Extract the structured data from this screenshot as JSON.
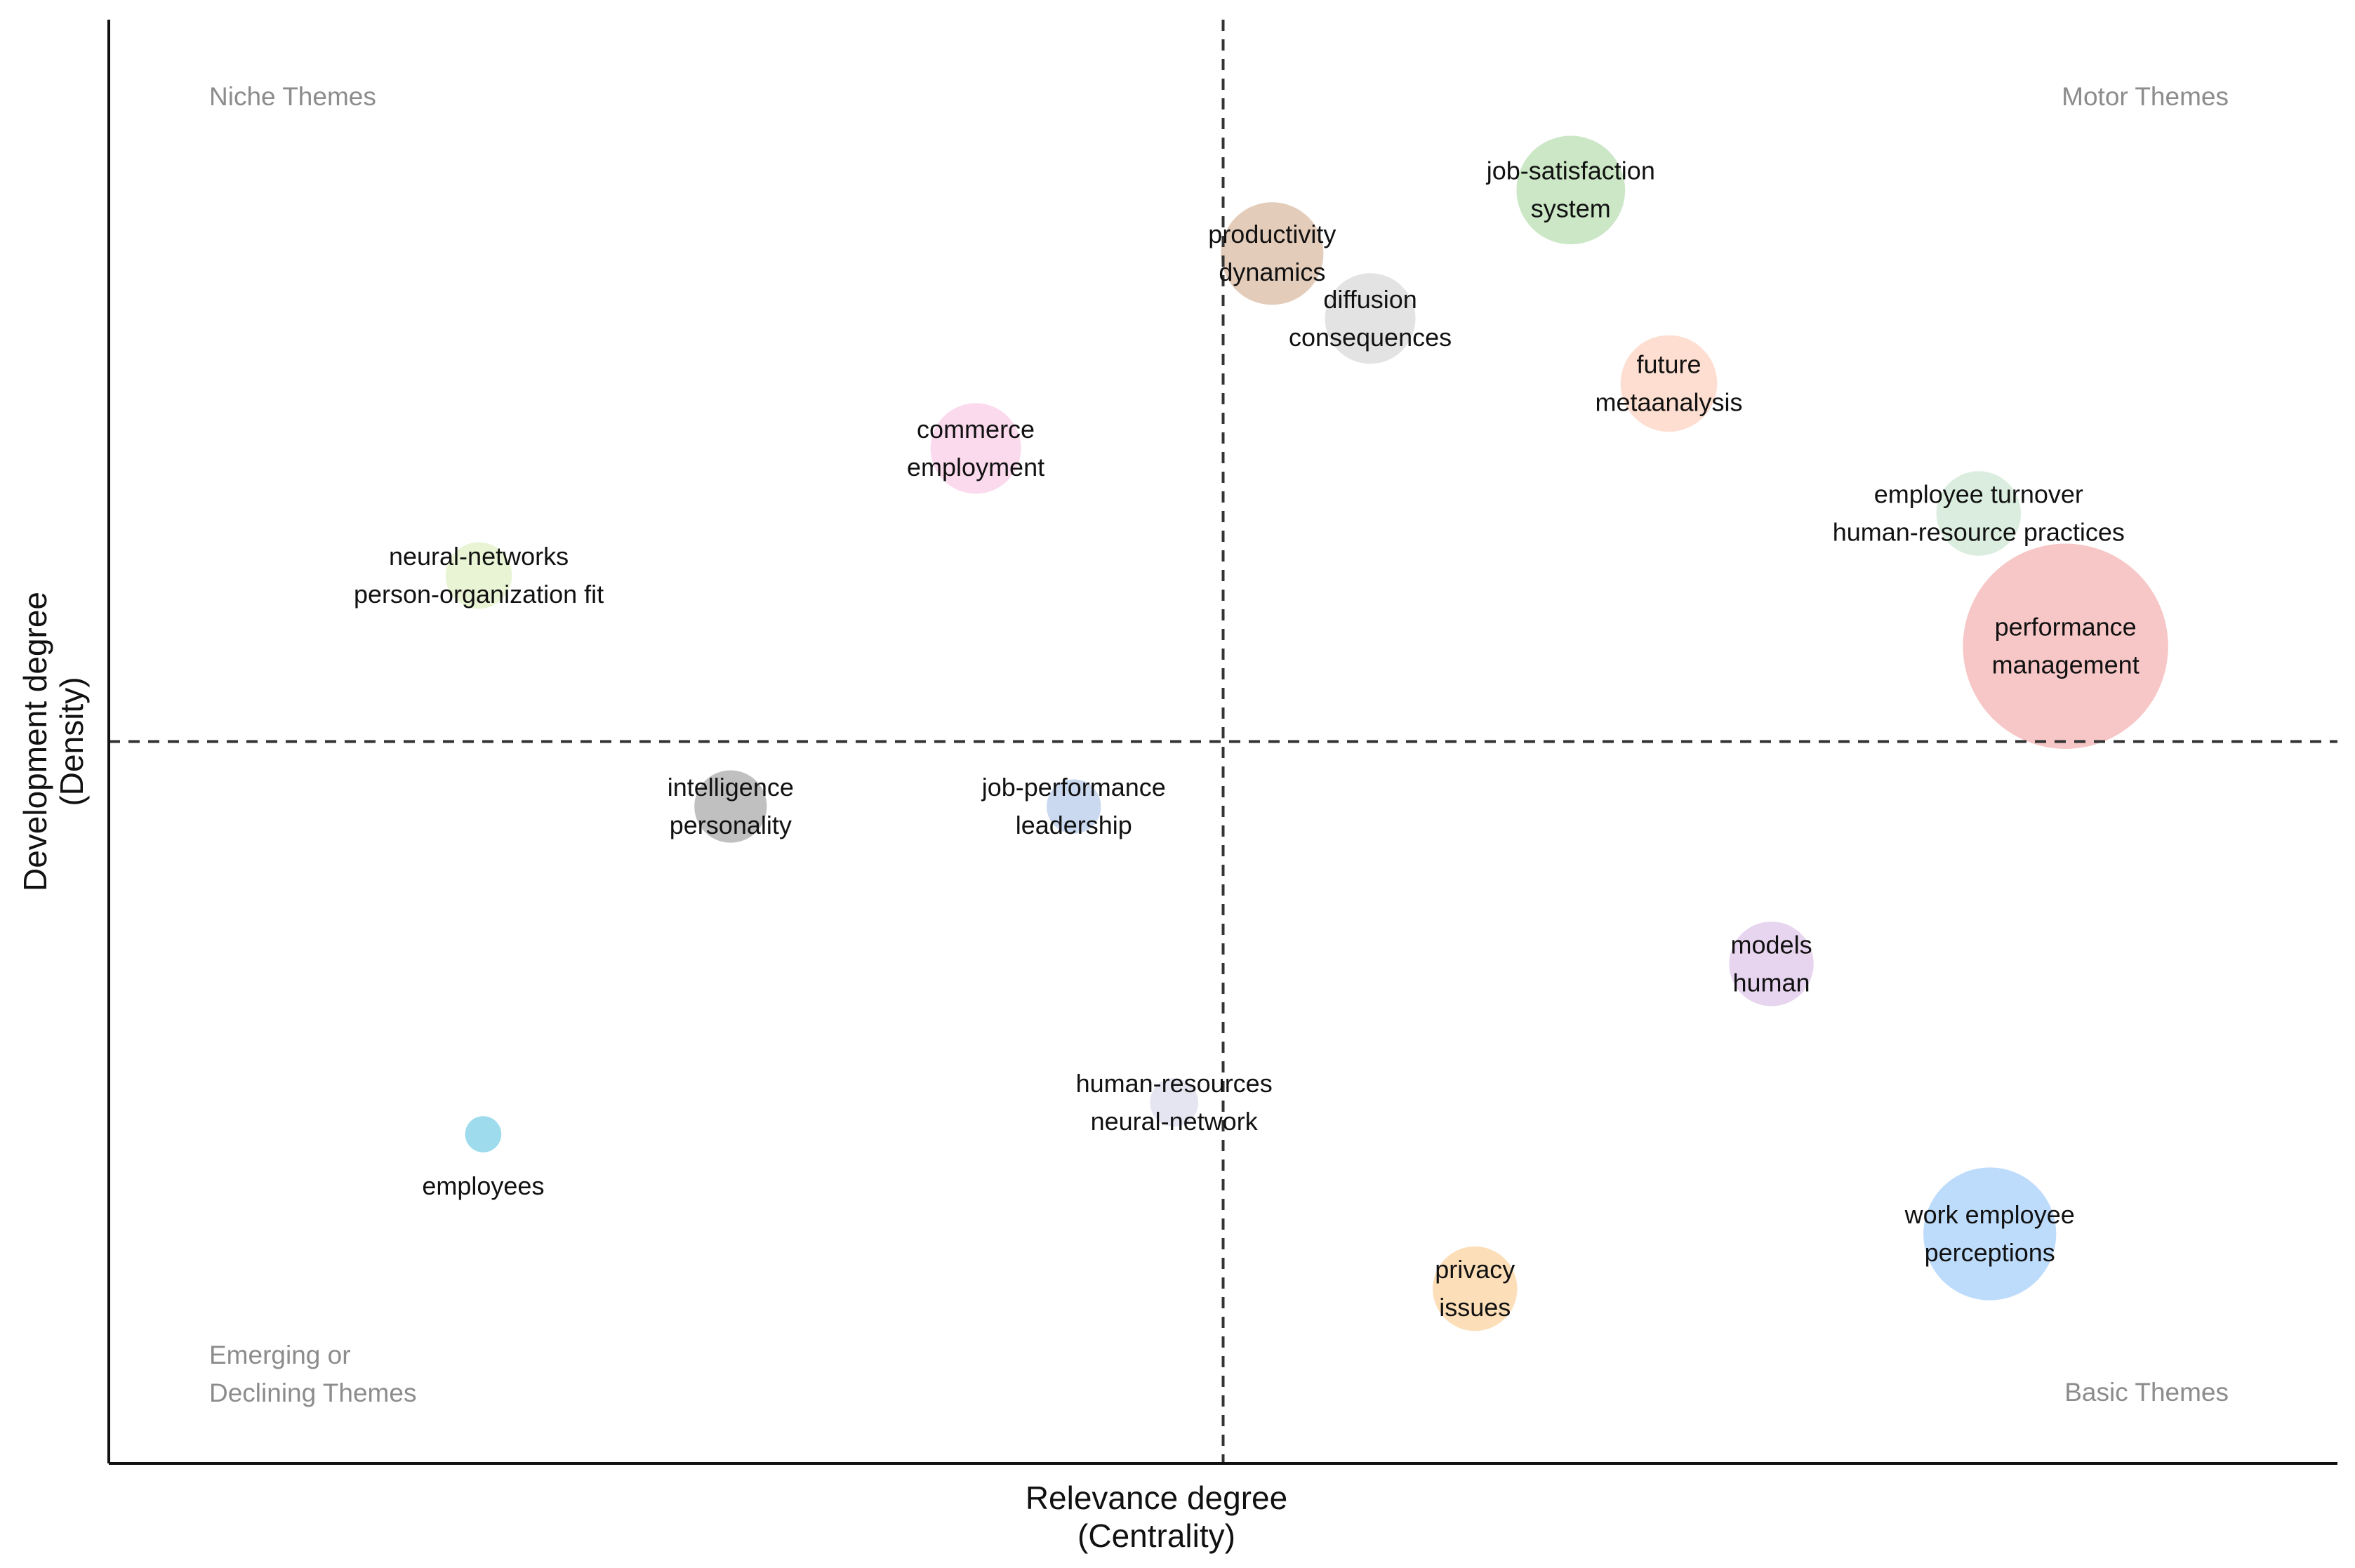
{
  "chart_data": {
    "type": "scatter",
    "title": "",
    "xlabel": [
      "Relevance degree",
      "(Centrality)"
    ],
    "ylabel": [
      "Development degree",
      "(Density)"
    ],
    "xlim": [
      0,
      100
    ],
    "ylim": [
      0,
      100
    ],
    "thresholds": {
      "x": 50,
      "y": 50
    },
    "grid": false,
    "quadrants": {
      "top_left": [
        "Niche Themes"
      ],
      "top_right": [
        "Motor Themes"
      ],
      "bottom_left": [
        "Emerging or",
        "Declining Themes"
      ],
      "bottom_right": [
        "Basic Themes"
      ]
    },
    "themes": [
      {
        "labels": [
          "job-satisfaction",
          "system"
        ],
        "x": 65.6,
        "y": 88.2,
        "size": 36,
        "color": "#c8e6c3"
      },
      {
        "labels": [
          "productivity",
          "dynamics"
        ],
        "x": 52.2,
        "y": 83.8,
        "size": 34,
        "color": "#e3c9b6"
      },
      {
        "labels": [
          "diffusion",
          "consequences"
        ],
        "x": 56.6,
        "y": 79.3,
        "size": 30,
        "color": "#e2e2e2"
      },
      {
        "labels": [
          "future",
          "metaanalysis"
        ],
        "x": 70.0,
        "y": 74.8,
        "size": 32,
        "color": "#fddcce"
      },
      {
        "labels": [
          "commerce",
          "employment"
        ],
        "x": 38.9,
        "y": 70.3,
        "size": 30,
        "color": "#fbd8ec"
      },
      {
        "labels": [
          "employee turnover",
          "human-resource practices"
        ],
        "x": 83.9,
        "y": 65.8,
        "size": 28,
        "color": "#d8ecdc"
      },
      {
        "labels": [
          "neural-networks",
          "person-organization fit"
        ],
        "x": 16.6,
        "y": 61.5,
        "size": 22,
        "color": "#e7f3d2"
      },
      {
        "labels": [
          "performance",
          "management"
        ],
        "x": 87.8,
        "y": 56.6,
        "size": 68,
        "color": "#f7c4c4"
      },
      {
        "labels": [
          "intelligence",
          "personality"
        ],
        "x": 27.9,
        "y": 45.5,
        "size": 24,
        "color": "#bdbdbd"
      },
      {
        "labels": [
          "job-performance",
          "leadership"
        ],
        "x": 43.3,
        "y": 45.5,
        "size": 18,
        "color": "#c7d7ee"
      },
      {
        "labels": [
          "models",
          "human"
        ],
        "x": 74.6,
        "y": 34.6,
        "size": 28,
        "color": "#e6d2ee"
      },
      {
        "labels": [
          "human-resources",
          "neural-network"
        ],
        "x": 47.8,
        "y": 25.0,
        "size": 16,
        "color": "#e4e4f1"
      },
      {
        "labels": [
          "employees"
        ],
        "x": 16.8,
        "y": 22.8,
        "size": 12,
        "color": "#98d9ec"
      },
      {
        "labels": [
          "work employee",
          "perceptions"
        ],
        "x": 84.4,
        "y": 15.9,
        "size": 44,
        "color": "#b9d9fb"
      },
      {
        "labels": [
          "privacy",
          "issues"
        ],
        "x": 61.3,
        "y": 12.1,
        "size": 28,
        "color": "#fcdcb5"
      }
    ]
  }
}
